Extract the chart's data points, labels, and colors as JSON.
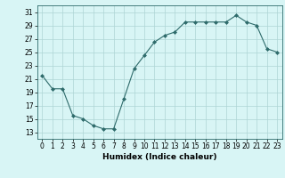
{
  "x": [
    0,
    1,
    2,
    3,
    4,
    5,
    6,
    7,
    8,
    9,
    10,
    11,
    12,
    13,
    14,
    15,
    16,
    17,
    18,
    19,
    20,
    21,
    22,
    23
  ],
  "y": [
    21.5,
    19.5,
    19.5,
    15.5,
    15.0,
    14.0,
    13.5,
    13.5,
    18.0,
    22.5,
    24.5,
    26.5,
    27.5,
    28.0,
    29.5,
    29.5,
    29.5,
    29.5,
    29.5,
    30.5,
    29.5,
    29.0,
    25.5,
    25.0
  ],
  "line_color": "#2e6b6b",
  "marker": "D",
  "marker_size": 2,
  "bg_color": "#d8f5f5",
  "grid_color": "#aed4d4",
  "xlabel": "Humidex (Indice chaleur)",
  "xlim": [
    -0.5,
    23.5
  ],
  "ylim": [
    12,
    32
  ],
  "yticks": [
    13,
    15,
    17,
    19,
    21,
    23,
    25,
    27,
    29,
    31
  ],
  "xticks": [
    0,
    1,
    2,
    3,
    4,
    5,
    6,
    7,
    8,
    9,
    10,
    11,
    12,
    13,
    14,
    15,
    16,
    17,
    18,
    19,
    20,
    21,
    22,
    23
  ],
  "label_fontsize": 6.5,
  "tick_fontsize": 5.5
}
